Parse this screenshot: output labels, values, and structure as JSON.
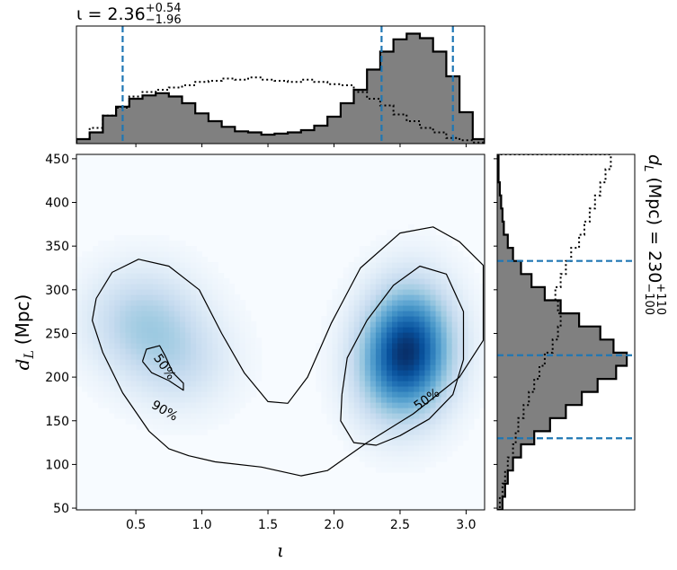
{
  "chart_data": [
    {
      "type": "heatmap",
      "panel": "joint",
      "xlabel": "ι",
      "ylabel": "d",
      "ylabel_sub": "L",
      "ylabel_unit": "(Mpc)",
      "xlim": [
        0.05,
        3.14
      ],
      "ylim": [
        48,
        455
      ],
      "xticks": [
        0.5,
        1.0,
        1.5,
        2.0,
        2.5,
        3.0
      ],
      "xtick_labels": [
        "0.5",
        "1.0",
        "1.5",
        "2.0",
        "2.5",
        "3.0"
      ],
      "yticks": [
        50,
        100,
        150,
        200,
        250,
        300,
        350,
        400,
        450
      ],
      "ytick_labels": [
        "50",
        "100",
        "150",
        "200",
        "250",
        "300",
        "350",
        "400",
        "450"
      ],
      "colormap": "Blues",
      "density_modes": [
        {
          "x": 2.58,
          "y": 235,
          "weight": 1.0,
          "sx": 0.23,
          "sy": 50
        },
        {
          "x": 2.4,
          "y": 205,
          "weight": 0.3,
          "sx": 0.22,
          "sy": 45
        },
        {
          "x": 0.55,
          "y": 265,
          "weight": 0.38,
          "sx": 0.3,
          "sy": 42
        },
        {
          "x": 0.85,
          "y": 215,
          "weight": 0.22,
          "sx": 0.28,
          "sy": 38
        }
      ],
      "contours": [
        {
          "level": "90%",
          "label": "90%",
          "label_at": [
            0.72,
            162
          ],
          "paths": [
            [
              [
                0.2,
                290
              ],
              [
                0.32,
                320
              ],
              [
                0.52,
                335
              ],
              [
                0.75,
                327
              ],
              [
                0.98,
                300
              ],
              [
                1.15,
                250
              ],
              [
                1.32,
                205
              ],
              [
                1.5,
                172
              ],
              [
                1.65,
                170
              ],
              [
                1.8,
                200
              ],
              [
                1.98,
                262
              ],
              [
                2.2,
                325
              ],
              [
                2.5,
                365
              ],
              [
                2.75,
                372
              ],
              [
                2.95,
                355
              ],
              [
                3.13,
                328
              ],
              [
                3.13,
                242
              ],
              [
                2.95,
                200
              ],
              [
                2.6,
                158
              ],
              [
                2.25,
                125
              ],
              [
                1.95,
                93
              ],
              [
                1.75,
                87
              ],
              [
                1.45,
                97
              ],
              [
                1.1,
                103
              ],
              [
                0.9,
                110
              ],
              [
                0.75,
                118
              ],
              [
                0.6,
                138
              ],
              [
                0.4,
                182
              ],
              [
                0.25,
                228
              ],
              [
                0.17,
                265
              ],
              [
                0.2,
                290
              ]
            ]
          ]
        },
        {
          "level": "50%",
          "label": "50%",
          "label_at": [
            2.7,
            175
          ],
          "paths": [
            [
              [
                2.06,
                180
              ],
              [
                2.1,
                222
              ],
              [
                2.25,
                265
              ],
              [
                2.45,
                305
              ],
              [
                2.65,
                327
              ],
              [
                2.85,
                318
              ],
              [
                2.98,
                275
              ],
              [
                2.98,
                220
              ],
              [
                2.9,
                180
              ],
              [
                2.72,
                152
              ],
              [
                2.5,
                133
              ],
              [
                2.32,
                122
              ],
              [
                2.15,
                125
              ],
              [
                2.05,
                150
              ],
              [
                2.06,
                180
              ]
            ],
            [
              [
                0.55,
                218
              ],
              [
                0.58,
                232
              ],
              [
                0.68,
                236
              ],
              [
                0.72,
                225
              ],
              [
                0.78,
                205
              ],
              [
                0.86,
                193
              ],
              [
                0.86,
                185
              ],
              [
                0.75,
                196
              ],
              [
                0.62,
                205
              ],
              [
                0.55,
                218
              ]
            ]
          ]
        }
      ]
    },
    {
      "type": "histogram",
      "panel": "top-marginal",
      "parameter": "ι",
      "summary_label": "ι = 2.36",
      "summary_upper": "+0.54",
      "summary_lower": "−1.96",
      "xlim": [
        0.05,
        3.14
      ],
      "bin_edges": [
        0.05,
        0.15,
        0.25,
        0.35,
        0.45,
        0.55,
        0.65,
        0.75,
        0.85,
        0.95,
        1.05,
        1.15,
        1.25,
        1.35,
        1.45,
        1.55,
        1.65,
        1.75,
        1.85,
        1.95,
        2.05,
        2.15,
        2.25,
        2.35,
        2.45,
        2.55,
        2.65,
        2.75,
        2.85,
        2.95,
        3.05,
        3.14
      ],
      "posterior_filled": [
        0.04,
        0.1,
        0.25,
        0.33,
        0.4,
        0.43,
        0.45,
        0.42,
        0.36,
        0.27,
        0.2,
        0.15,
        0.11,
        0.1,
        0.08,
        0.09,
        0.1,
        0.12,
        0.16,
        0.24,
        0.36,
        0.48,
        0.66,
        0.82,
        0.93,
        0.98,
        0.94,
        0.82,
        0.6,
        0.28,
        0.04
      ],
      "prior_dotted": [
        0.04,
        0.14,
        0.25,
        0.32,
        0.42,
        0.46,
        0.48,
        0.5,
        0.52,
        0.55,
        0.56,
        0.58,
        0.57,
        0.59,
        0.57,
        0.56,
        0.55,
        0.57,
        0.55,
        0.53,
        0.52,
        0.46,
        0.4,
        0.34,
        0.26,
        0.2,
        0.14,
        0.1,
        0.05,
        0.03,
        0.01
      ],
      "dashed_lines": [
        0.4,
        2.36,
        2.9
      ],
      "fill_color": "#808080",
      "dashed_color": "#1f77b4"
    },
    {
      "type": "histogram",
      "panel": "right-marginal",
      "orientation": "horizontal",
      "parameter": "d_L",
      "summary_label": "d",
      "summary_sub": "L",
      "summary_rest": " (Mpc) = 230",
      "summary_upper": "+110",
      "summary_lower": "−100",
      "ylim": [
        48,
        455
      ],
      "bin_edges": [
        48,
        63,
        78,
        93,
        108,
        123,
        138,
        153,
        168,
        183,
        198,
        213,
        228,
        243,
        258,
        273,
        288,
        303,
        318,
        333,
        348,
        363,
        378,
        393,
        408,
        423,
        438,
        455
      ],
      "posterior_filled": [
        0.04,
        0.06,
        0.08,
        0.12,
        0.18,
        0.28,
        0.4,
        0.52,
        0.64,
        0.76,
        0.9,
        0.98,
        0.88,
        0.78,
        0.62,
        0.48,
        0.36,
        0.26,
        0.18,
        0.12,
        0.08,
        0.05,
        0.04,
        0.03,
        0.02,
        0.01,
        0.01
      ],
      "prior_dotted": [
        0.02,
        0.04,
        0.06,
        0.08,
        0.12,
        0.14,
        0.16,
        0.2,
        0.24,
        0.28,
        0.32,
        0.36,
        0.42,
        0.46,
        0.48,
        0.46,
        0.44,
        0.48,
        0.52,
        0.56,
        0.62,
        0.66,
        0.7,
        0.74,
        0.78,
        0.82,
        0.86
      ],
      "dashed_lines": [
        130,
        225,
        333
      ],
      "fill_color": "#808080",
      "dashed_color": "#1f77b4"
    }
  ]
}
